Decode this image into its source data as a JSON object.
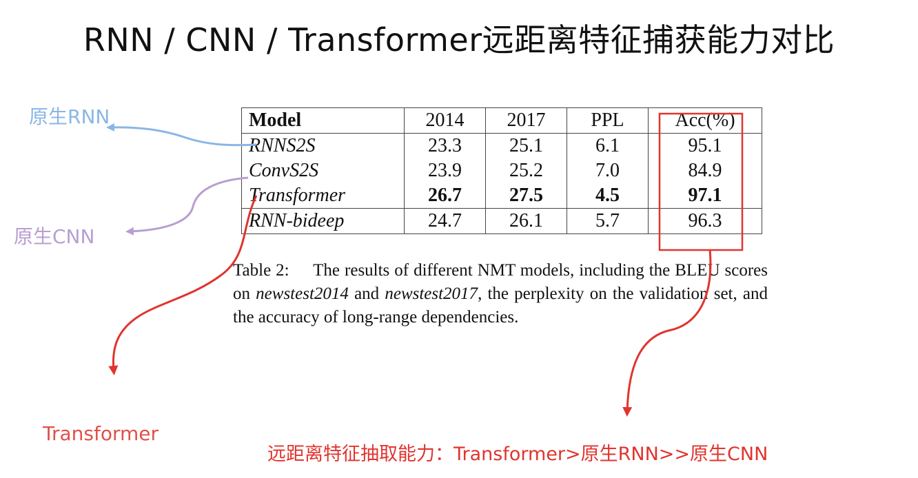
{
  "slide": {
    "title": "RNN / CNN / Transformer远距离特征捕获能力对比"
  },
  "annotations": {
    "rnn_label": "原生RNN",
    "cnn_label": "原生CNN",
    "transformer_label": "Transformer",
    "conclusion": "远距离特征抽取能力：Transformer>原生RNN>>原生CNN",
    "colors": {
      "rnn": "#8ab6e6",
      "cnn": "#b89ed2",
      "transformer": "#e0504a",
      "highlight_box": "#e0342e"
    }
  },
  "table": {
    "headers": [
      "Model",
      "2014",
      "2017",
      "PPL",
      "Acc(%)"
    ],
    "rows": [
      {
        "model": "RNNS2S",
        "v2014": "23.3",
        "v2017": "25.1",
        "ppl": "6.1",
        "acc": "95.1"
      },
      {
        "model": "ConvS2S",
        "v2014": "23.9",
        "v2017": "25.2",
        "ppl": "7.0",
        "acc": "84.9"
      },
      {
        "model": "Transformer",
        "v2014": "26.7",
        "v2017": "27.5",
        "ppl": "4.5",
        "acc": "97.1"
      },
      {
        "model": "RNN-bideep",
        "v2014": "24.7",
        "v2017": "26.1",
        "ppl": "5.7",
        "acc": "96.3"
      }
    ]
  },
  "caption": {
    "lead": "Table 2:",
    "part1": "The results of different NMT models, including the BLEU scores on",
    "em1": "newstest2014",
    "part2": "and",
    "em2": "newstest2017",
    "part3": ", the perplexity on the validation set, and the accuracy of long-range dependencies."
  }
}
